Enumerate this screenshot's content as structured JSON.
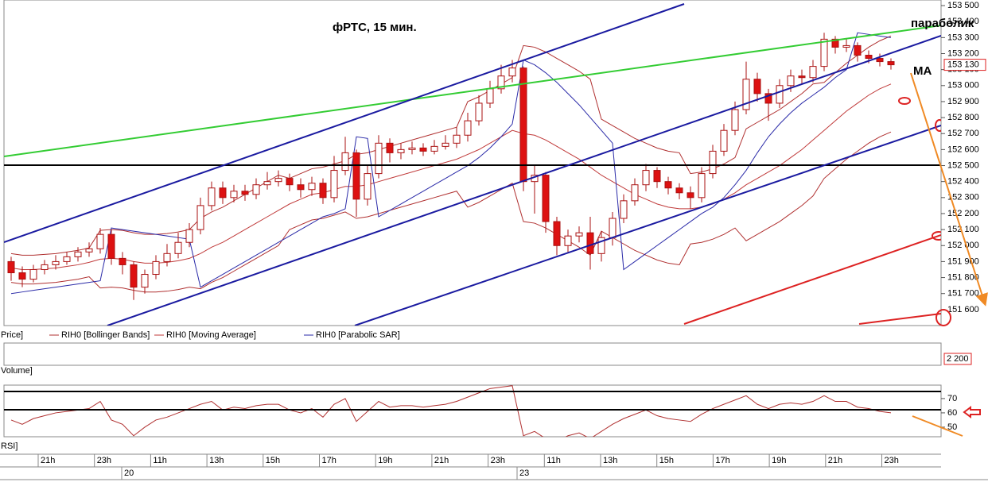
{
  "chart_data": {
    "type": "candlestick",
    "title": "фРТС,  15 мин.",
    "annotations": [
      "параболик",
      "МА"
    ],
    "ylim": [
      151500,
      153535
    ],
    "yticks": [
      {
        "value": 151600,
        "label": "151 600"
      },
      {
        "value": 151700,
        "label": "151 700"
      },
      {
        "value": 151800,
        "label": "151 800"
      },
      {
        "value": 151900,
        "label": "151 900"
      },
      {
        "value": 152000,
        "label": "152 000"
      },
      {
        "value": 152100,
        "label": "152 100"
      },
      {
        "value": 152200,
        "label": "152 200"
      },
      {
        "value": 152300,
        "label": "152 300"
      },
      {
        "value": 152400,
        "label": "152 400"
      },
      {
        "value": 152500,
        "label": "152 500"
      },
      {
        "value": 152600,
        "label": "152 600"
      },
      {
        "value": 152700,
        "label": "152 700"
      },
      {
        "value": 152800,
        "label": "152 800"
      },
      {
        "value": 152900,
        "label": "152 900"
      },
      {
        "value": 153000,
        "label": "153 000"
      },
      {
        "value": 153100,
        "label": "153 100"
      },
      {
        "value": 153200,
        "label": "153 200"
      },
      {
        "value": 153300,
        "label": "153 300"
      },
      {
        "value": 153400,
        "label": "153 400"
      },
      {
        "value": 153500,
        "label": "153 500"
      }
    ],
    "last_price": {
      "value": 153130,
      "label": "153 130"
    },
    "price": {
      "name": "Price]",
      "open": [
        151900,
        151830,
        151790,
        151850,
        151880,
        151900,
        151930,
        151960,
        151980,
        152070,
        151920,
        151880,
        151740,
        151820,
        151900,
        151950,
        152020,
        152100,
        152250,
        152360,
        152300,
        152340,
        152320,
        152380,
        152400,
        152420,
        152380,
        152350,
        152390,
        152300,
        152470,
        152580,
        152290,
        152450,
        152640,
        152580,
        152600,
        152610,
        152590,
        152620,
        152640,
        152690,
        152780,
        152890,
        152980,
        153060,
        153110,
        152400,
        152440,
        152150,
        152000,
        152060,
        152080,
        151950,
        152050,
        152170,
        152280,
        152380,
        152470,
        152400,
        152360,
        152330,
        152300,
        152450,
        152590,
        152720,
        152850,
        153040,
        152950,
        152890,
        153000,
        153060,
        153050,
        153120,
        153290,
        153240,
        153250,
        153190,
        153170,
        153150
      ],
      "high": [
        151930,
        151870,
        151880,
        151910,
        151940,
        151960,
        151990,
        152020,
        152110,
        152100,
        151960,
        151900,
        151850,
        151940,
        152010,
        152080,
        152140,
        152300,
        152400,
        152400,
        152380,
        152380,
        152420,
        152460,
        152470,
        152450,
        152420,
        152430,
        152420,
        152560,
        152680,
        152600,
        152500,
        152690,
        152670,
        152640,
        152650,
        152640,
        152660,
        152690,
        152740,
        152830,
        152940,
        153030,
        153130,
        153160,
        153120,
        152500,
        152460,
        152180,
        152100,
        152120,
        152180,
        152090,
        152210,
        152320,
        152420,
        152510,
        152490,
        152430,
        152390,
        152370,
        152490,
        152630,
        152760,
        152900,
        153150,
        153080,
        152980,
        153040,
        153100,
        153100,
        153160,
        153330,
        153310,
        153290,
        153270,
        153220,
        153200,
        153170
      ],
      "low": [
        151780,
        151740,
        151770,
        151820,
        151850,
        151880,
        151900,
        151930,
        151950,
        151880,
        151820,
        151660,
        151700,
        151790,
        151870,
        151920,
        151990,
        152070,
        152220,
        152260,
        152270,
        152280,
        152290,
        152350,
        152370,
        152340,
        152300,
        152310,
        152260,
        152270,
        152440,
        152180,
        152250,
        152420,
        152520,
        152540,
        152570,
        152560,
        152570,
        152600,
        152610,
        152650,
        152750,
        152860,
        152950,
        153020,
        152340,
        152200,
        152080,
        151940,
        151960,
        152020,
        151850,
        151900,
        152000,
        152140,
        152250,
        152340,
        152360,
        152320,
        152290,
        152230,
        152270,
        152420,
        152560,
        152690,
        152820,
        152900,
        152780,
        152860,
        152960,
        153010,
        153020,
        153090,
        153200,
        153210,
        153150,
        153140,
        153120,
        153100
      ],
      "close": [
        151830,
        151790,
        151850,
        151880,
        151900,
        151930,
        151960,
        151980,
        152070,
        151920,
        151880,
        151740,
        151820,
        151900,
        151950,
        152020,
        152100,
        152250,
        152360,
        152300,
        152340,
        152320,
        152380,
        152400,
        152420,
        152380,
        152350,
        152390,
        152300,
        152470,
        152580,
        152290,
        152450,
        152640,
        152580,
        152600,
        152610,
        152590,
        152620,
        152640,
        152690,
        152780,
        152890,
        152980,
        153060,
        153110,
        152400,
        152440,
        152150,
        152000,
        152060,
        152080,
        151950,
        152050,
        152170,
        152280,
        152380,
        152470,
        152400,
        152360,
        152330,
        152300,
        152450,
        152590,
        152720,
        152850,
        153040,
        152950,
        152890,
        153000,
        153060,
        153050,
        153120,
        153290,
        153240,
        153250,
        153190,
        153170,
        153150,
        153130
      ],
      "up_color": "#ffffff",
      "down_color": "#dd1111",
      "edge_color": "#aa1111"
    },
    "bollinger": {
      "name": "RIH0 [Bollinger Bands]",
      "color": "#b03030",
      "upper": [
        151950,
        151940,
        151940,
        151945,
        151950,
        151960,
        151970,
        151985,
        152095,
        152100,
        152095,
        152080,
        152070,
        152070,
        152075,
        152085,
        152100,
        152170,
        152210,
        152240,
        152280,
        152320,
        152360,
        152400,
        152440,
        152420,
        152450,
        152480,
        152490,
        152510,
        152530,
        152570,
        152580,
        152600,
        152620,
        152640,
        152660,
        152680,
        152700,
        152720,
        152740,
        152900,
        152930,
        152970,
        153010,
        153050,
        153250,
        153240,
        153210,
        153170,
        153130,
        153090,
        153040,
        152790,
        152750,
        152710,
        152670,
        152640,
        152610,
        152590,
        152580,
        152450,
        152460,
        152480,
        152510,
        152550,
        152730,
        152770,
        152810,
        152850,
        152900,
        152950,
        153010,
        153020,
        153080,
        153140,
        153190,
        153240,
        153280,
        153310
      ],
      "lower": [
        151770,
        151760,
        151760,
        151765,
        151770,
        151780,
        151790,
        151805,
        151735,
        151740,
        151735,
        151720,
        151710,
        151710,
        151715,
        151725,
        151740,
        151730,
        151770,
        151800,
        151840,
        151880,
        151920,
        151960,
        152000,
        152100,
        152130,
        152160,
        152170,
        152190,
        152210,
        152170,
        152180,
        152200,
        152220,
        152240,
        152260,
        152280,
        152300,
        152320,
        152340,
        152240,
        152270,
        152310,
        152350,
        152390,
        152150,
        152140,
        152110,
        152070,
        152030,
        151990,
        151940,
        152090,
        152050,
        152010,
        151970,
        151940,
        151910,
        151890,
        151880,
        152010,
        152020,
        152040,
        152070,
        152110,
        152030,
        152070,
        152110,
        152150,
        152200,
        152250,
        152310,
        152420,
        152480,
        152540,
        152590,
        152640,
        152680,
        152710
      ]
    },
    "ma": {
      "name": "RIH0 [Moving Average]",
      "color": "#c03a3a",
      "values": [
        151860,
        151850,
        151850,
        151855,
        151860,
        151870,
        151880,
        151895,
        151915,
        151920,
        151915,
        151900,
        151890,
        151890,
        151895,
        151905,
        151920,
        151950,
        151990,
        152020,
        152060,
        152100,
        152140,
        152180,
        152220,
        152260,
        152290,
        152320,
        152330,
        152350,
        152370,
        152370,
        152380,
        152400,
        152420,
        152440,
        152460,
        152480,
        152500,
        152520,
        152540,
        152570,
        152600,
        152640,
        152680,
        152720,
        152700,
        152690,
        152660,
        152620,
        152580,
        152540,
        152490,
        152440,
        152400,
        152360,
        152320,
        152290,
        152260,
        152240,
        152230,
        152230,
        152240,
        152260,
        152290,
        152330,
        152380,
        152420,
        152460,
        152500,
        152550,
        152600,
        152660,
        152720,
        152780,
        152840,
        152890,
        152940,
        152980,
        153010
      ]
    },
    "sar": {
      "name": "RIH0 [Parabolic SAR]",
      "color": "#2a2aa8",
      "values": [
        151700,
        151710,
        151720,
        151730,
        151740,
        151750,
        151760,
        151770,
        151780,
        152110,
        152100,
        152090,
        152080,
        152070,
        152060,
        152050,
        152040,
        151740,
        151780,
        151820,
        151860,
        151900,
        151940,
        151980,
        152020,
        152060,
        152100,
        152140,
        152180,
        152200,
        152230,
        152680,
        152670,
        152180,
        152220,
        152260,
        152300,
        152340,
        152380,
        152420,
        152460,
        152500,
        152550,
        152610,
        152680,
        152760,
        153160,
        153130,
        153080,
        153020,
        152950,
        152880,
        152800,
        152720,
        152640,
        151850,
        151900,
        151950,
        152000,
        152050,
        152100,
        152150,
        152200,
        152240,
        152300,
        152380,
        152470,
        152580,
        152680,
        152760,
        152830,
        152890,
        152940,
        152990,
        153050,
        153100,
        153330,
        153320,
        153310,
        153300
      ]
    },
    "volume": {
      "name": "Volume]",
      "yticks": [
        {
          "value": 2200,
          "label": "2 200"
        }
      ]
    },
    "rsi": {
      "name": "RSI]",
      "color": "#b03030",
      "ylim": [
        43.3,
        79.4
      ],
      "yticks": [
        70,
        60,
        50
      ],
      "values": [
        55,
        52,
        56,
        58,
        60,
        61,
        62,
        63,
        68,
        55,
        52,
        44,
        50,
        55,
        57,
        60,
        63,
        66,
        68,
        62,
        64,
        63,
        65,
        66,
        66,
        62,
        60,
        63,
        57,
        66,
        70,
        54,
        61,
        68,
        64,
        65,
        65,
        64,
        65,
        66,
        68,
        71,
        74,
        77,
        78,
        79,
        44,
        47,
        42,
        40,
        44,
        46,
        42,
        47,
        52,
        56,
        59,
        62,
        58,
        56,
        55,
        54,
        59,
        63,
        66,
        69,
        72,
        66,
        63,
        66,
        67,
        66,
        68,
        72,
        68,
        68,
        64,
        63,
        61,
        60
      ]
    },
    "time_labels": [
      "21h",
      "23h",
      "11h",
      "13h",
      "15h",
      "17h",
      "19h",
      "21h",
      "23h",
      "11h",
      "13h",
      "15h",
      "17h",
      "19h",
      "21h",
      "23h"
    ],
    "date_labels": [
      "20",
      "23"
    ]
  }
}
